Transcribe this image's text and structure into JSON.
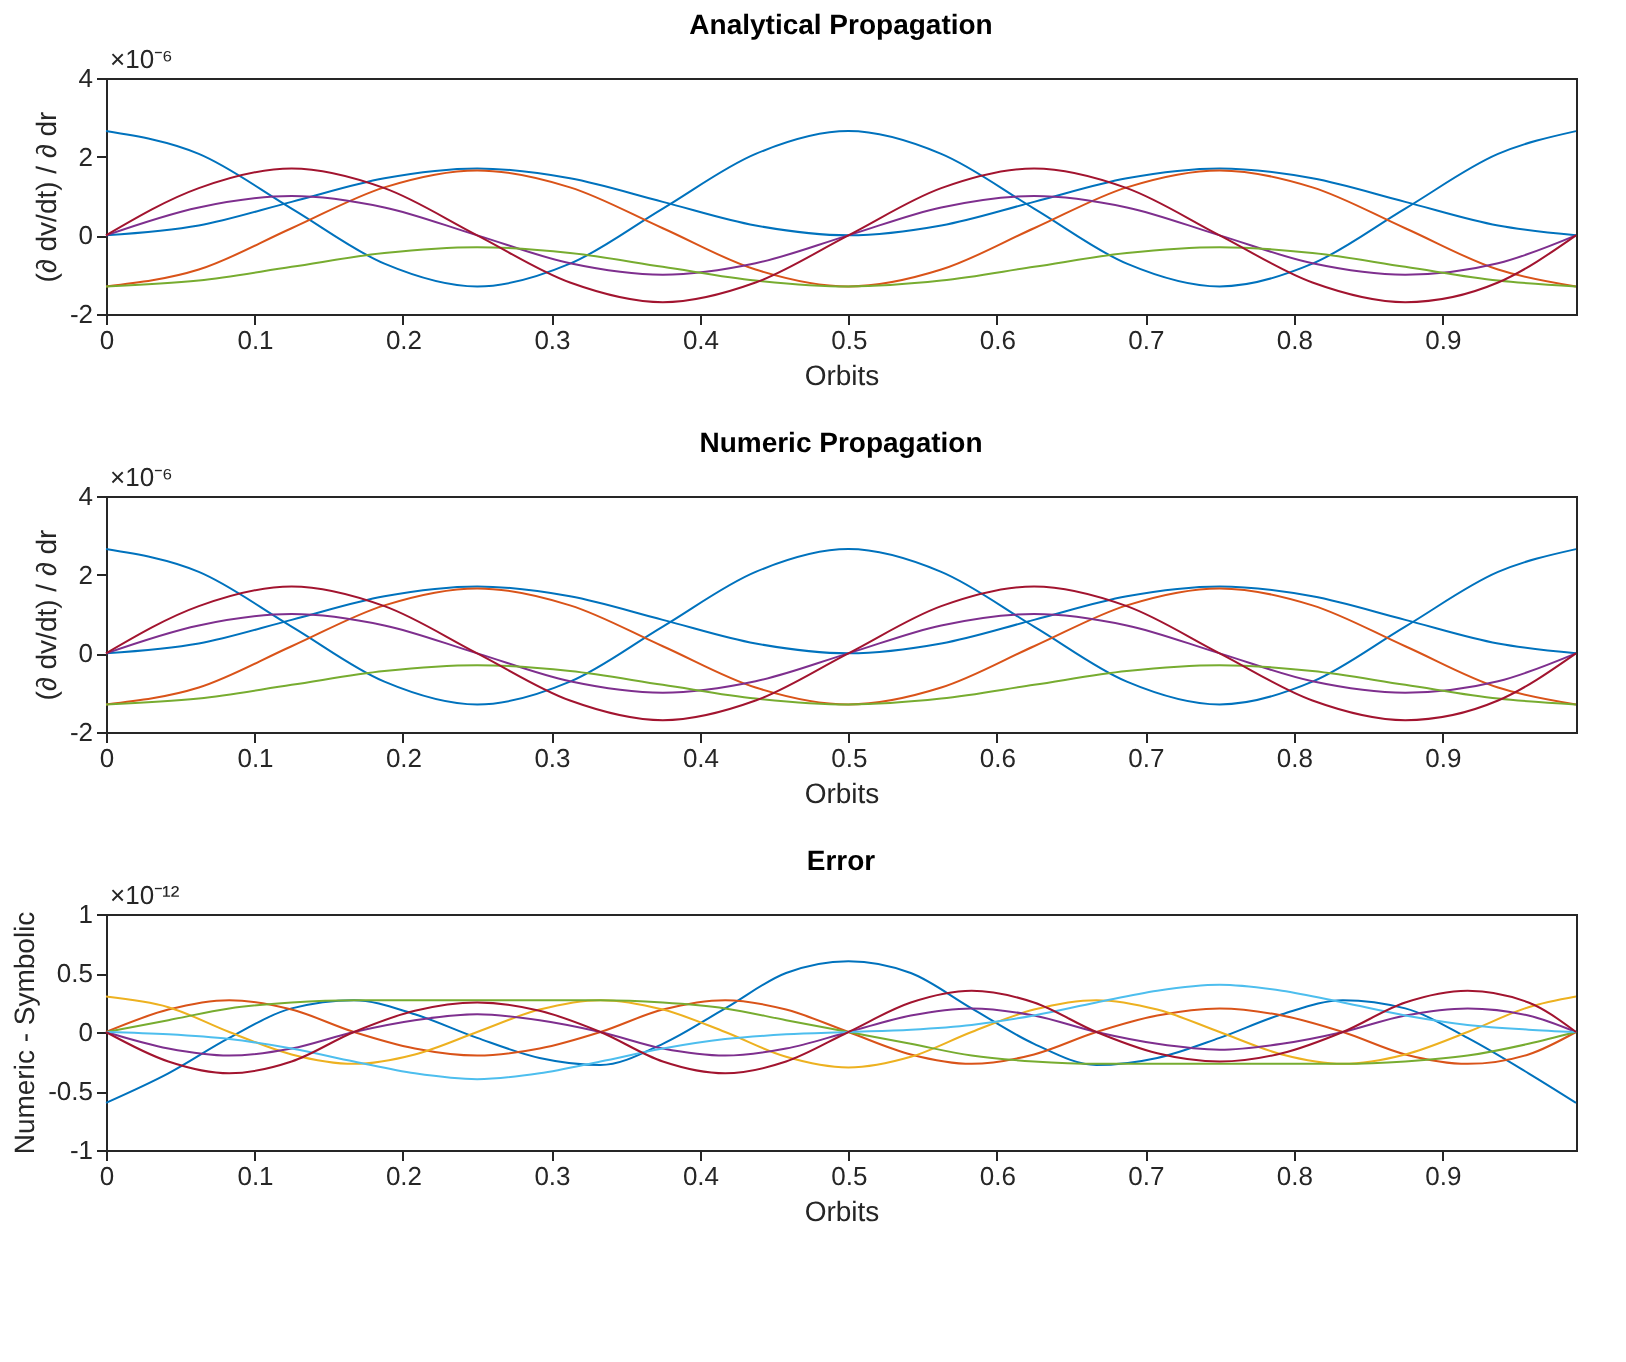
{
  "chart_data": [
    {
      "type": "line",
      "title": "Analytical Propagation",
      "xlabel": "Orbits",
      "ylabel": "(∂ dv/dt) / ∂ dr",
      "annotations": [
        "×10⁻⁶"
      ],
      "x": [
        0,
        0.0625,
        0.125,
        0.1875,
        0.25,
        0.3125,
        0.375,
        0.4375,
        0.5,
        0.5625,
        0.625,
        0.6875,
        0.75,
        0.8125,
        0.875,
        0.9375,
        0.99
      ],
      "xlim": [
        0,
        0.99
      ],
      "xticks": [
        0,
        0.1,
        0.2,
        0.3,
        0.4,
        0.5,
        0.6,
        0.7,
        0.8,
        0.9
      ],
      "ylim": [
        -2,
        4
      ],
      "yticks": [
        -2,
        0,
        2,
        4
      ],
      "series": [
        {
          "color": "#0072bd",
          "values": [
            2.65,
            2.07,
            0.68,
            -0.72,
            -1.3,
            -0.72,
            0.68,
            2.07,
            2.65,
            2.07,
            0.68,
            -0.72,
            -1.3,
            -0.72,
            0.68,
            2.07,
            2.65
          ]
        },
        {
          "color": "#0072bd",
          "values": [
            0,
            0.25,
            0.85,
            1.45,
            1.7,
            1.45,
            0.85,
            0.25,
            0,
            0.25,
            0.85,
            1.45,
            1.7,
            1.45,
            0.85,
            0.25,
            0
          ]
        },
        {
          "color": "#d95319",
          "values": [
            -1.3,
            -0.87,
            0.18,
            1.22,
            1.65,
            1.22,
            0.18,
            -0.87,
            -1.3,
            -0.87,
            0.18,
            1.22,
            1.65,
            1.22,
            0.18,
            -0.87,
            -1.3
          ]
        },
        {
          "color": "#7e2f8e",
          "values": [
            0,
            0.71,
            1,
            0.71,
            0,
            -0.71,
            -1,
            -0.71,
            0,
            0.71,
            1,
            0.71,
            0,
            -0.71,
            -1,
            -0.71,
            0
          ]
        },
        {
          "color": "#77ac30",
          "values": [
            -1.3,
            -1.15,
            -0.8,
            -0.45,
            -0.3,
            -0.45,
            -0.8,
            -1.15,
            -1.3,
            -1.15,
            -0.8,
            -0.45,
            -0.3,
            -0.45,
            -0.8,
            -1.15,
            -1.3
          ]
        },
        {
          "color": "#a2142f",
          "values": [
            0,
            1.2,
            1.7,
            1.2,
            0,
            -1.2,
            -1.7,
            -1.2,
            0,
            1.2,
            1.7,
            1.2,
            0,
            -1.2,
            -1.7,
            -1.2,
            0
          ]
        }
      ]
    },
    {
      "type": "line",
      "title": "Numeric Propagation",
      "xlabel": "Orbits",
      "ylabel": "(∂ dv/dt) / ∂ dr",
      "annotations": [
        "×10⁻⁶"
      ],
      "x": [
        0,
        0.0625,
        0.125,
        0.1875,
        0.25,
        0.3125,
        0.375,
        0.4375,
        0.5,
        0.5625,
        0.625,
        0.6875,
        0.75,
        0.8125,
        0.875,
        0.9375,
        0.99
      ],
      "xlim": [
        0,
        0.99
      ],
      "xticks": [
        0,
        0.1,
        0.2,
        0.3,
        0.4,
        0.5,
        0.6,
        0.7,
        0.8,
        0.9
      ],
      "ylim": [
        -2,
        4
      ],
      "yticks": [
        -2,
        0,
        2,
        4
      ],
      "series": [
        {
          "color": "#0072bd",
          "values": [
            2.65,
            2.07,
            0.68,
            -0.72,
            -1.3,
            -0.72,
            0.68,
            2.07,
            2.65,
            2.07,
            0.68,
            -0.72,
            -1.3,
            -0.72,
            0.68,
            2.07,
            2.65
          ]
        },
        {
          "color": "#0072bd",
          "values": [
            0,
            0.25,
            0.85,
            1.45,
            1.7,
            1.45,
            0.85,
            0.25,
            0,
            0.25,
            0.85,
            1.45,
            1.7,
            1.45,
            0.85,
            0.25,
            0
          ]
        },
        {
          "color": "#d95319",
          "values": [
            -1.3,
            -0.87,
            0.18,
            1.22,
            1.65,
            1.22,
            0.18,
            -0.87,
            -1.3,
            -0.87,
            0.18,
            1.22,
            1.65,
            1.22,
            0.18,
            -0.87,
            -1.3
          ]
        },
        {
          "color": "#7e2f8e",
          "values": [
            0,
            0.71,
            1,
            0.71,
            0,
            -0.71,
            -1,
            -0.71,
            0,
            0.71,
            1,
            0.71,
            0,
            -0.71,
            -1,
            -0.71,
            0
          ]
        },
        {
          "color": "#77ac30",
          "values": [
            -1.3,
            -1.15,
            -0.8,
            -0.45,
            -0.3,
            -0.45,
            -0.8,
            -1.15,
            -1.3,
            -1.15,
            -0.8,
            -0.45,
            -0.3,
            -0.45,
            -0.8,
            -1.15,
            -1.3
          ]
        },
        {
          "color": "#a2142f",
          "values": [
            0,
            1.2,
            1.7,
            1.2,
            0,
            -1.2,
            -1.7,
            -1.2,
            0,
            1.2,
            1.7,
            1.2,
            0,
            -1.2,
            -1.7,
            -1.2,
            0
          ]
        }
      ]
    },
    {
      "type": "line",
      "title": "Error",
      "xlabel": "Orbits",
      "ylabel": "Numeric - Symbolic",
      "annotations": [
        "×10⁻¹²"
      ],
      "x": [
        0,
        0.042,
        0.083,
        0.125,
        0.167,
        0.208,
        0.25,
        0.292,
        0.333,
        0.375,
        0.417,
        0.458,
        0.5,
        0.542,
        0.583,
        0.625,
        0.667,
        0.708,
        0.75,
        0.792,
        0.833,
        0.875,
        0.917,
        0.958,
        0.99
      ],
      "xlim": [
        0,
        0.99
      ],
      "xticks": [
        0,
        0.1,
        0.2,
        0.3,
        0.4,
        0.5,
        0.6,
        0.7,
        0.8,
        0.9
      ],
      "ylim": [
        -1,
        1
      ],
      "yticks": [
        -1,
        -0.5,
        0,
        0.5,
        1
      ],
      "series": [
        {
          "color": "#0072bd",
          "values": [
            -0.6,
            -0.35,
            -0.05,
            0.2,
            0.27,
            0.15,
            -0.05,
            -0.22,
            -0.28,
            -0.1,
            0.2,
            0.5,
            0.6,
            0.5,
            0.2,
            -0.1,
            -0.28,
            -0.22,
            -0.05,
            0.15,
            0.27,
            0.2,
            -0.05,
            -0.35,
            -0.6
          ]
        },
        {
          "color": "#d95319",
          "values": [
            0,
            0.19,
            0.27,
            0.19,
            0,
            -0.14,
            -0.2,
            -0.14,
            0,
            0.19,
            0.27,
            0.19,
            0,
            -0.19,
            -0.27,
            -0.19,
            0,
            0.14,
            0.2,
            0.14,
            0,
            -0.19,
            -0.27,
            -0.19,
            0
          ]
        },
        {
          "color": "#edb120",
          "values": [
            0.3,
            0.21,
            0,
            -0.19,
            -0.27,
            -0.19,
            0,
            0.19,
            0.27,
            0.19,
            0,
            -0.21,
            -0.3,
            -0.21,
            0,
            0.19,
            0.27,
            0.19,
            0,
            -0.19,
            -0.27,
            -0.19,
            0,
            0.21,
            0.3
          ]
        },
        {
          "color": "#7e2f8e",
          "values": [
            0,
            -0.14,
            -0.2,
            -0.14,
            0,
            0.1,
            0.15,
            0.1,
            0,
            -0.14,
            -0.2,
            -0.14,
            0,
            0.14,
            0.2,
            0.14,
            0,
            -0.1,
            -0.15,
            -0.1,
            0,
            0.14,
            0.2,
            0.14,
            0
          ]
        },
        {
          "color": "#77ac30",
          "values": [
            0,
            0.1,
            0.2,
            0.25,
            0.27,
            0.27,
            0.27,
            0.27,
            0.27,
            0.25,
            0.2,
            0.1,
            0,
            -0.1,
            -0.2,
            -0.25,
            -0.27,
            -0.27,
            -0.27,
            -0.27,
            -0.27,
            -0.25,
            -0.2,
            -0.1,
            0
          ]
        },
        {
          "color": "#4dbeee",
          "values": [
            0,
            -0.02,
            -0.06,
            -0.14,
            -0.25,
            -0.35,
            -0.4,
            -0.35,
            -0.25,
            -0.14,
            -0.06,
            -0.02,
            0,
            0.02,
            0.06,
            0.14,
            0.25,
            0.35,
            0.4,
            0.35,
            0.25,
            0.14,
            0.06,
            0.02,
            0
          ]
        },
        {
          "color": "#a2142f",
          "values": [
            0,
            -0.25,
            -0.35,
            -0.25,
            0,
            0.18,
            0.25,
            0.18,
            0,
            -0.25,
            -0.35,
            -0.25,
            0,
            0.25,
            0.35,
            0.25,
            0,
            -0.18,
            -0.25,
            -0.18,
            0,
            0.25,
            0.35,
            0.25,
            0
          ]
        }
      ]
    }
  ]
}
